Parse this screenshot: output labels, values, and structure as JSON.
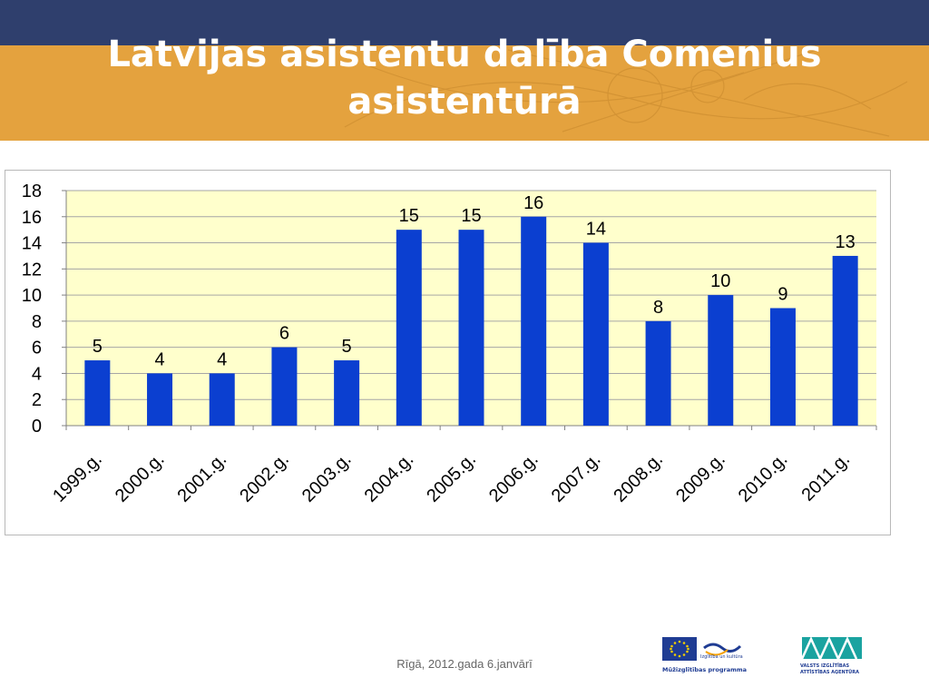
{
  "slide": {
    "title_line1": "Latvijas asistentu dalība Comenius",
    "title_line2": "asistentūrā",
    "footer": "Rīgā, 2012.gada 6.janvārī",
    "colors": {
      "top_band": "#2f3f6d",
      "orange_band": "#e4a23e",
      "plot_bg": "#ffffcc",
      "bar": "#0b3fd0",
      "grid": "#a6a6a6"
    }
  },
  "logos": {
    "mzp_tagline": "Izglītība un kultūra",
    "mzp_name": "Mūžizglītības programma",
    "via_line1": "VALSTS IZGLĪTĪBAS",
    "via_line2": "ATTĪSTĪBAS AĢENTŪRA"
  },
  "chart_data": {
    "type": "bar",
    "categories": [
      "1999.g.",
      "2000.g.",
      "2001.g.",
      "2002.g.",
      "2003.g.",
      "2004.g.",
      "2005.g.",
      "2006.g.",
      "2007.g.",
      "2008.g.",
      "2009.g.",
      "2010.g.",
      "2011.g."
    ],
    "values": [
      5,
      4,
      4,
      6,
      5,
      15,
      15,
      16,
      14,
      8,
      10,
      9,
      13
    ],
    "ylim": [
      0,
      18
    ],
    "yticks": [
      0,
      2,
      4,
      6,
      8,
      10,
      12,
      14,
      16,
      18
    ],
    "grid": true,
    "legend": "none",
    "data_labels": true,
    "bar_color": "#0b3fd0",
    "plot_background": "#ffffcc"
  }
}
